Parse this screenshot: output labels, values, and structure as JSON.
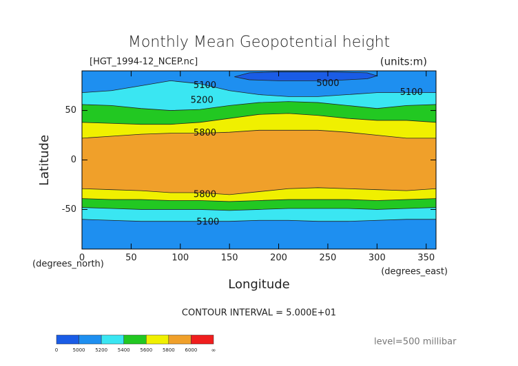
{
  "chart_data": {
    "type": "contour",
    "title": "Monthly Mean Geopotential height",
    "file_label": "[HGT_1994-12_NCEP.nc]",
    "units_label": "(units:m)",
    "x_label": "Longitude",
    "y_label": "Latitude",
    "x_unit_label": "(degrees_east)",
    "y_unit_label": "(degrees_north)",
    "contour_interval_label": "CONTOUR INTERVAL = 5.000E+01",
    "level_label": "level=500 millibar",
    "xlim": [
      0,
      360
    ],
    "ylim": [
      -90,
      90
    ],
    "xticks": [
      0,
      50,
      100,
      150,
      200,
      250,
      300,
      350
    ],
    "yticks": [
      -50,
      0,
      50
    ],
    "colorbar": {
      "ticks": [
        0,
        5000,
        5200,
        5400,
        5600,
        5800,
        6000
      ],
      "end_label": "∞",
      "colors": [
        "#1a5ce6",
        "#1e8ff0",
        "#3ae6f2",
        "#22c822",
        "#f0f000",
        "#f0a02a",
        "#f01e1e"
      ]
    },
    "contours": [
      {
        "level": 5800,
        "lon": [
          0,
          30,
          60,
          90,
          120,
          150,
          180,
          210,
          240,
          270,
          300,
          330,
          360
        ],
        "lat": [
          22,
          24,
          26,
          27,
          27,
          28,
          30,
          30,
          30,
          28,
          25,
          22,
          22
        ]
      },
      {
        "level": 5600,
        "lon": [
          0,
          30,
          60,
          90,
          120,
          150,
          180,
          210,
          240,
          270,
          300,
          330,
          360
        ],
        "lat": [
          38,
          37,
          36,
          36,
          38,
          42,
          46,
          47,
          45,
          42,
          40,
          40,
          38
        ]
      },
      {
        "level": 5400,
        "lon": [
          0,
          30,
          60,
          90,
          120,
          150,
          180,
          210,
          240,
          270,
          300,
          330,
          360
        ],
        "lat": [
          56,
          55,
          52,
          50,
          51,
          55,
          58,
          59,
          58,
          55,
          52,
          55,
          56
        ]
      },
      {
        "level": 5200,
        "lon": [
          0,
          30,
          60,
          90,
          120,
          150,
          180,
          210,
          240,
          270,
          300,
          330,
          360
        ],
        "lat": [
          68,
          70,
          75,
          80,
          77,
          70,
          66,
          64,
          64,
          66,
          68,
          68,
          68
        ]
      },
      {
        "level": 5000,
        "closed": true,
        "lon": [
          155,
          170,
          200,
          250,
          290,
          300,
          290,
          250,
          200,
          170,
          155
        ],
        "lat": [
          84,
          81,
          80,
          80,
          82,
          85,
          88,
          89,
          89,
          88,
          84
        ]
      },
      {
        "level": 5800,
        "lon": [
          0,
          30,
          60,
          90,
          120,
          150,
          180,
          210,
          240,
          270,
          300,
          330,
          360
        ],
        "lat": [
          -29,
          -30,
          -31,
          -33,
          -33,
          -35,
          -32,
          -29,
          -28,
          -29,
          -30,
          -31,
          -29
        ]
      },
      {
        "level": 5600,
        "lon": [
          0,
          30,
          60,
          90,
          120,
          150,
          180,
          210,
          240,
          270,
          300,
          330,
          360
        ],
        "lat": [
          -39,
          -40,
          -40,
          -41,
          -41,
          -42,
          -41,
          -40,
          -40,
          -40,
          -41,
          -40,
          -39
        ]
      },
      {
        "level": 5400,
        "lon": [
          0,
          30,
          60,
          90,
          120,
          150,
          180,
          210,
          240,
          270,
          300,
          330,
          360
        ],
        "lat": [
          -48,
          -49,
          -50,
          -50,
          -50,
          -51,
          -50,
          -49,
          -49,
          -49,
          -50,
          -49,
          -48
        ]
      },
      {
        "level": 5200,
        "lon": [
          0,
          30,
          60,
          90,
          120,
          150,
          180,
          210,
          240,
          270,
          300,
          330,
          360
        ],
        "lat": [
          -60,
          -61,
          -62,
          -62,
          -62,
          -62,
          -61,
          -61,
          -62,
          -62,
          -61,
          -60,
          -60
        ]
      }
    ],
    "contour_labels": [
      {
        "level": 5100,
        "lon": 125,
        "lat": 75
      },
      {
        "level": 5000,
        "lon": 250,
        "lat": 77
      },
      {
        "level": 5100,
        "lon": 335,
        "lat": 68
      },
      {
        "level": 5200,
        "lon": 122,
        "lat": 60
      },
      {
        "level": 5800,
        "lon": 125,
        "lat": 27
      },
      {
        "level": 5800,
        "lon": 125,
        "lat": -35
      },
      {
        "level": 5100,
        "lon": 128,
        "lat": -63
      }
    ]
  }
}
